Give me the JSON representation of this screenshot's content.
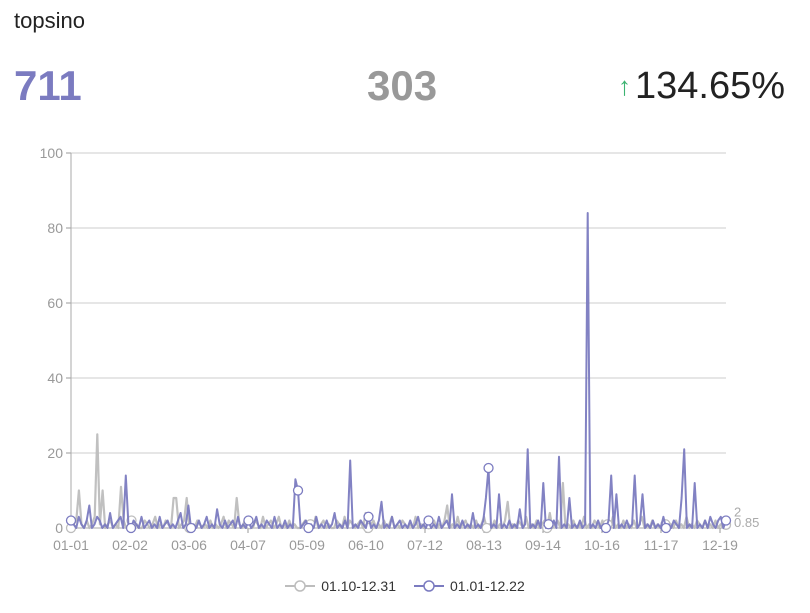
{
  "page": {
    "title": "topsino"
  },
  "stats": {
    "current": "711",
    "previous": "303",
    "change": "134.65%",
    "change_direction": "up"
  },
  "colors": {
    "current": "#7b7bc0",
    "previous": "#bdbdbd",
    "up": "#3cb371"
  },
  "chart_data": {
    "type": "line",
    "title": "",
    "xlabel": "",
    "ylabel": "",
    "ylim": [
      0,
      100
    ],
    "yticks": [
      0,
      20,
      40,
      60,
      80,
      100
    ],
    "grid": true,
    "x_tick_labels": [
      "01-01",
      "02-02",
      "03-06",
      "04-07",
      "05-09",
      "06-10",
      "07-12",
      "08-13",
      "09-14",
      "10-16",
      "11-17",
      "12-19"
    ],
    "legend_position": "bottom",
    "series": [
      {
        "name": "01.10-12.31",
        "color": "#bdbdbd",
        "values": [
          0,
          1,
          2,
          10,
          1,
          0,
          2,
          0,
          1,
          3,
          25,
          1,
          10,
          0,
          1,
          2,
          0,
          1,
          0,
          11,
          2,
          0,
          1,
          2,
          0,
          1,
          0,
          0,
          2,
          1,
          0,
          1,
          3,
          0,
          1,
          0,
          2,
          1,
          0,
          8,
          8,
          0,
          1,
          2,
          8,
          0,
          1,
          0,
          2,
          1,
          0,
          1,
          0,
          2,
          0,
          1,
          0,
          1,
          3,
          0,
          2,
          1,
          0,
          8,
          1,
          0,
          2,
          0,
          1,
          0,
          2,
          1,
          0,
          3,
          0,
          1,
          2,
          0,
          1,
          3,
          0,
          1,
          0,
          2,
          0,
          1,
          0,
          0,
          1,
          2,
          0,
          1,
          0,
          3,
          0,
          1,
          2,
          0,
          1,
          0,
          0,
          2,
          1,
          0,
          3,
          0,
          2,
          1,
          0,
          1,
          2,
          0,
          4,
          0,
          1,
          2,
          0,
          1,
          0,
          2,
          0,
          1,
          3,
          0,
          1,
          0,
          2,
          1,
          0,
          1,
          0,
          3,
          0,
          1,
          0,
          2,
          1,
          0,
          2,
          0,
          1,
          0,
          2,
          6,
          0,
          1,
          0,
          3,
          0,
          1,
          2,
          0,
          1,
          0,
          2,
          0,
          1,
          3,
          0,
          1,
          0,
          2,
          0,
          1,
          0,
          2,
          7,
          0,
          1,
          0,
          2,
          1,
          0,
          3,
          0,
          1,
          0,
          2,
          0,
          1,
          2,
          0,
          4,
          0,
          1,
          2,
          0,
          12,
          0,
          1,
          0,
          2,
          0,
          1,
          0,
          3,
          0,
          1,
          0,
          2,
          1,
          0,
          2,
          0,
          1,
          0,
          3,
          0,
          1,
          0,
          2,
          0,
          1,
          0,
          2,
          0,
          1,
          3,
          0,
          1,
          0,
          2,
          0,
          1,
          0,
          2,
          1,
          0,
          1,
          0,
          2,
          0,
          1,
          0,
          3,
          0,
          1,
          0,
          2,
          1,
          0,
          2,
          0,
          1,
          0,
          2,
          0,
          1,
          0,
          0.85
        ],
        "end_label": "0.85"
      },
      {
        "name": "01.01-12.22",
        "color": "#7b7bc0",
        "values": [
          2,
          1,
          0,
          3,
          1,
          0,
          2,
          6,
          0,
          1,
          3,
          2,
          0,
          1,
          0,
          4,
          0,
          1,
          2,
          3,
          0,
          14,
          1,
          0,
          2,
          1,
          0,
          3,
          0,
          1,
          2,
          0,
          1,
          0,
          3,
          0,
          1,
          2,
          0,
          1,
          0,
          2,
          4,
          0,
          1,
          6,
          0,
          1,
          0,
          2,
          0,
          1,
          3,
          0,
          1,
          0,
          5,
          1,
          0,
          2,
          0,
          1,
          2,
          0,
          3,
          0,
          1,
          0,
          2,
          0,
          1,
          3,
          0,
          1,
          0,
          2,
          1,
          0,
          3,
          0,
          1,
          0,
          2,
          0,
          1,
          0,
          13,
          10,
          0,
          1,
          2,
          0,
          1,
          0,
          3,
          0,
          1,
          0,
          2,
          0,
          1,
          4,
          0,
          1,
          0,
          2,
          0,
          18,
          0,
          1,
          0,
          2,
          1,
          0,
          3,
          0,
          1,
          0,
          2,
          7,
          0,
          1,
          0,
          3,
          0,
          1,
          2,
          0,
          1,
          0,
          2,
          0,
          1,
          3,
          0,
          1,
          0,
          2,
          0,
          1,
          0,
          3,
          0,
          1,
          2,
          0,
          9,
          0,
          1,
          0,
          2,
          0,
          1,
          0,
          4,
          0,
          1,
          0,
          2,
          8,
          16,
          0,
          1,
          0,
          9,
          0,
          1,
          0,
          2,
          0,
          1,
          0,
          5,
          0,
          1,
          21,
          0,
          1,
          0,
          2,
          0,
          12,
          0,
          1,
          0,
          2,
          0,
          19,
          0,
          1,
          0,
          8,
          0,
          1,
          0,
          2,
          0,
          1,
          84,
          0,
          1,
          0,
          2,
          0,
          1,
          0,
          2,
          14,
          0,
          9,
          0,
          1,
          0,
          2,
          0,
          1,
          14,
          0,
          1,
          9,
          0,
          1,
          0,
          2,
          0,
          1,
          0,
          3,
          0,
          1,
          0,
          2,
          1,
          0,
          8,
          21,
          0,
          1,
          0,
          12,
          0,
          1,
          0,
          2,
          0,
          3,
          1,
          0,
          2,
          3,
          0,
          2
        ],
        "end_label": "2"
      }
    ],
    "markers": [
      {
        "series": 1,
        "x_index": 87,
        "value": 10
      }
    ]
  }
}
